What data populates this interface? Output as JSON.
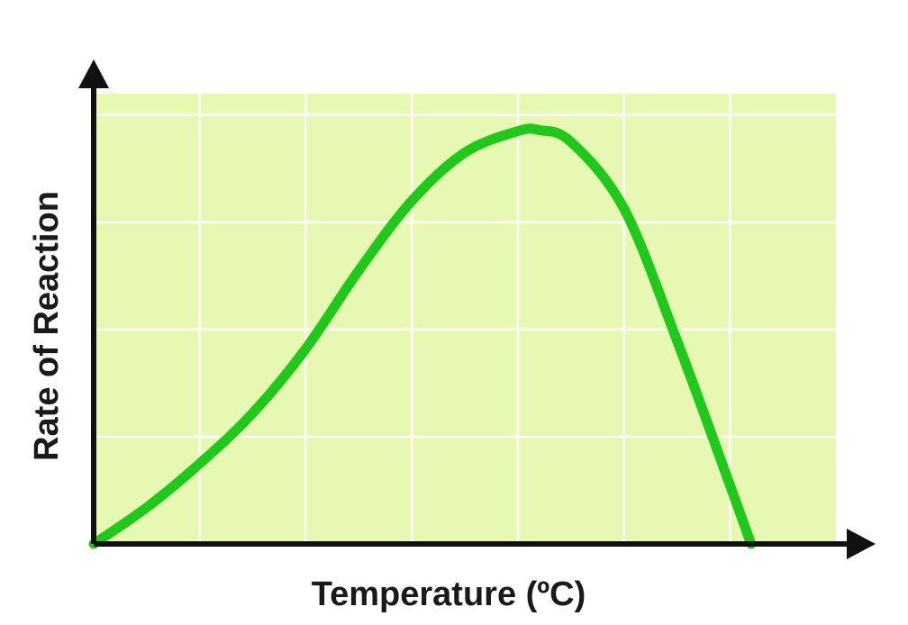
{
  "chart_data": {
    "type": "line",
    "title": "",
    "xlabel": "Temperature (ºC)",
    "ylabel": "Rate of Reaction",
    "xlim": [
      0,
      7
    ],
    "ylim": [
      0,
      4.2
    ],
    "grid": true,
    "tick_labels_shown": false,
    "series": [
      {
        "color": "#1fc81a",
        "x": [
          0,
          0.5,
          1,
          1.5,
          2,
          2.5,
          3,
          3.5,
          4,
          4.2,
          4.5,
          5,
          5.5,
          6,
          6.2
        ],
        "y": [
          0,
          0.34,
          0.75,
          1.22,
          1.82,
          2.55,
          3.2,
          3.65,
          3.85,
          3.86,
          3.75,
          3.13,
          1.9,
          0.55,
          0
        ]
      }
    ],
    "colors": {
      "plot_background": "#e7f8b2",
      "grid": "#ffffff",
      "axis": "#111111",
      "curve": "#1fc81a"
    }
  }
}
